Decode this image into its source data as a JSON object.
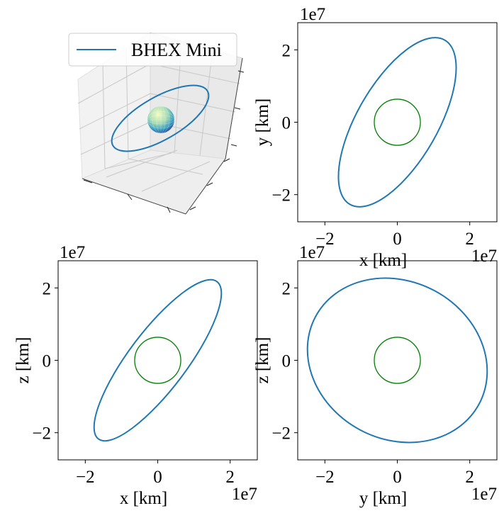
{
  "figure": {
    "panels": 4
  },
  "chart_data": [
    {
      "type": "line",
      "projection": "3d",
      "series": [
        {
          "name": "BHEX Mini",
          "color": "#1f77b4",
          "shape": "ellipse-orbit"
        },
        {
          "shape": "sphere",
          "colormap": "YlGnBu"
        }
      ],
      "legend": {
        "placement": "top-left",
        "entries": [
          "BHEX Mini"
        ]
      },
      "grid": true
    },
    {
      "type": "line",
      "xlabel": "x [km]",
      "ylabel": "y [km]",
      "x_offset": "1e7",
      "y_offset": "1e7",
      "xlim": [
        -2.75,
        2.75
      ],
      "ylim": [
        -2.75,
        2.75
      ],
      "xticks": [
        -2,
        0,
        2
      ],
      "yticks": [
        -2,
        0,
        2
      ],
      "xtick_labels": [
        "−2",
        "0",
        "2"
      ],
      "ytick_labels": [
        "−2",
        "0",
        "2"
      ],
      "series": [
        {
          "color": "#1f77b4",
          "ellipse": {
            "cx": 0,
            "cy": 0,
            "a": 2.62,
            "b": 1.11,
            "angle_deg": 60
          }
        },
        {
          "color": "#008000",
          "ellipse": {
            "cx": 0,
            "cy": 0,
            "a": 0.637,
            "b": 0.637,
            "angle_deg": 0
          }
        }
      ]
    },
    {
      "type": "line",
      "xlabel": "x [km]",
      "ylabel": "z [km]",
      "x_offset": "1e7",
      "y_offset": "1e7",
      "xlim": [
        -2.75,
        2.75
      ],
      "ylim": [
        -2.75,
        2.75
      ],
      "xticks": [
        -2,
        0,
        2
      ],
      "yticks": [
        -2,
        0,
        2
      ],
      "xtick_labels": [
        "−2",
        "0",
        "2"
      ],
      "ytick_labels": [
        "−2",
        "0",
        "2"
      ],
      "series": [
        {
          "color": "#1f77b4",
          "ellipse": {
            "cx": 0,
            "cy": 0,
            "a": 2.72,
            "b": 0.8,
            "angle_deg": 53
          }
        },
        {
          "color": "#008000",
          "ellipse": {
            "cx": 0,
            "cy": 0,
            "a": 0.637,
            "b": 0.637,
            "angle_deg": 0
          }
        }
      ]
    },
    {
      "type": "line",
      "xlabel": "y [km]",
      "ylabel": "z [km]",
      "x_offset": "1e7",
      "y_offset": "1e7",
      "xlim": [
        -2.75,
        2.75
      ],
      "ylim": [
        -2.75,
        2.75
      ],
      "xticks": [
        -2,
        0,
        2
      ],
      "yticks": [
        -2,
        0,
        2
      ],
      "xtick_labels": [
        "−2",
        "0",
        "2"
      ],
      "ytick_labels": [
        "−2",
        "0",
        "2"
      ],
      "series": [
        {
          "color": "#1f77b4",
          "ellipse": {
            "cx": 0,
            "cy": 0,
            "a": 2.56,
            "b": 2.18,
            "angle_deg": -28
          }
        },
        {
          "color": "#008000",
          "ellipse": {
            "cx": 0,
            "cy": 0,
            "a": 0.637,
            "b": 0.637,
            "angle_deg": 0
          }
        }
      ]
    }
  ]
}
